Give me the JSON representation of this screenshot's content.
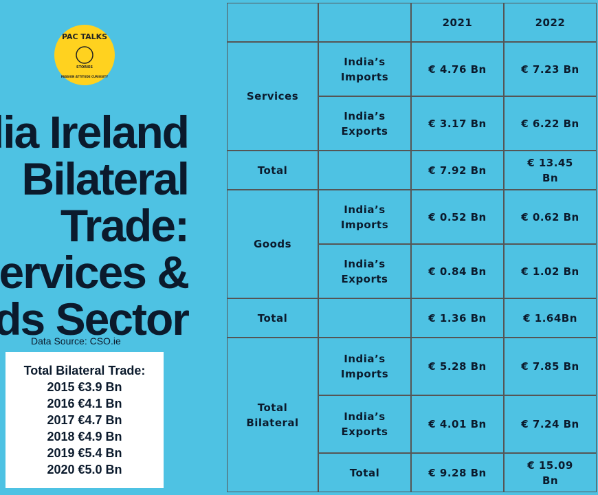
{
  "logo": {
    "name": "PAC TALKS",
    "sub": "STORIES",
    "motto": "PASSION ATTITUDE CURIOSITY"
  },
  "title_lines": [
    "India Ireland",
    "Bilateral",
    "Trade:",
    "Services &",
    "Goods Sector"
  ],
  "source": "Data Source: CSO.ie",
  "summary": {
    "heading": "Total Bilateral Trade:",
    "lines": [
      "2015 €3.9 Bn",
      "2016 €4.1 Bn",
      "2017 €4.7 Bn",
      "2018 €4.9 Bn",
      "2019 €5.4 Bn",
      "2020 €5.0 Bn"
    ]
  },
  "table": {
    "years": [
      "2021",
      "2022"
    ],
    "sections": [
      {
        "label": "Services",
        "rows": [
          {
            "label": "India’s Imports",
            "values": [
              "€ 4.76 Bn",
              "€ 7.23 Bn"
            ]
          },
          {
            "label": "India’s Exports",
            "values": [
              "€ 3.17 Bn",
              "€ 6.22 Bn"
            ]
          }
        ],
        "total": {
          "label": "Total",
          "values": [
            "€ 7.92 Bn",
            "€ 13.45 Bn"
          ]
        }
      },
      {
        "label": "Goods",
        "rows": [
          {
            "label": "India’s Imports",
            "values": [
              "€ 0.52 Bn",
              "€ 0.62 Bn"
            ]
          },
          {
            "label": "India’s Exports",
            "values": [
              "€ 0.84 Bn",
              "€ 1.02 Bn"
            ]
          }
        ],
        "total": {
          "label": "Total",
          "values": [
            "€ 1.36 Bn",
            "€ 1.64Bn"
          ]
        }
      },
      {
        "label": "Total Bilateral",
        "rows": [
          {
            "label": "India’s Imports",
            "values": [
              "€ 5.28 Bn",
              "€ 7.85 Bn"
            ]
          },
          {
            "label": "India’s Exports",
            "values": [
              "€ 4.01 Bn",
              "€ 7.24 Bn"
            ]
          }
        ],
        "total": {
          "label": "Total",
          "values": [
            "€ 9.28 Bn",
            "€ 15.09 Bn"
          ]
        }
      }
    ]
  }
}
